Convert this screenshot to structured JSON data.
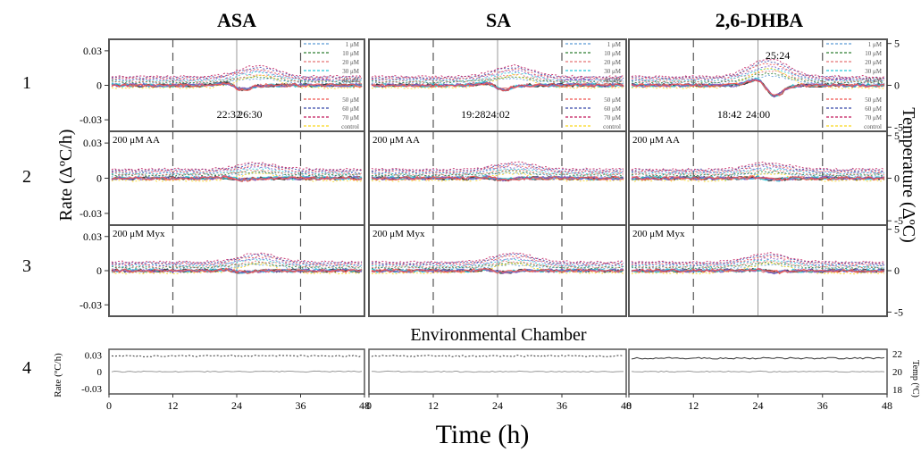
{
  "column_titles": [
    "ASA",
    "SA",
    "2,6-DHBA"
  ],
  "row_labels": [
    "1",
    "2",
    "3",
    "4"
  ],
  "y_left_label": "Rate (ΔºC/h)",
  "y_right_label": "Temperature (ΔºC)",
  "x_label": "Time (h)",
  "env_title": "Environmental Chamber",
  "env_left_label": "Rate (ºC/h)",
  "env_right_label": "Temp (ºC)",
  "row_annotations": [
    "",
    "200 μM AA",
    "200 μM Myx"
  ],
  "time_annotations": [
    {
      "text": "22:32",
      "col": 0,
      "t": 22.53
    },
    {
      "text": "26:30",
      "col": 0,
      "t": 26.5
    },
    {
      "text": "19:28",
      "col": 1,
      "t": 19.47
    },
    {
      "text": "24:02",
      "col": 1,
      "t": 24.03
    },
    {
      "text": "18:42",
      "col": 2,
      "t": 18.7
    },
    {
      "text": "24:00",
      "col": 2,
      "t": 24.0
    },
    {
      "text": "25:24",
      "col": 2,
      "t": 25.4
    }
  ],
  "legend_top": [
    "1 μM",
    "10 μM",
    "20 μM",
    "30 μM",
    "40 μM"
  ],
  "legend_bottom": [
    "50 μM",
    "60 μM",
    "70 μM",
    "control"
  ],
  "colors": {
    "1 μM": "#5b9bd5",
    "10 μM": "#2e7d32",
    "20 μM": "#e57373",
    "30 μM": "#26c6da",
    "40 μM": "#7e57c2",
    "50 μM": "#ef5350",
    "60 μM": "#3949ab",
    "70 μM": "#c2185b",
    "control": "#f9d71c"
  },
  "chart_data": {
    "type": "line",
    "x_ticks": [
      0,
      12,
      24,
      36,
      48
    ],
    "x_range": [
      0,
      48
    ],
    "rate_ticks": [
      -0.03,
      0,
      0.03
    ],
    "rate_tick_labels": [
      "-0.03",
      "0",
      "0.03"
    ],
    "rate_range": [
      -0.04,
      0.04
    ],
    "temp_ticks": [
      -5,
      0,
      5
    ],
    "temp_range": [
      -5.5,
      5.5
    ],
    "env_rate_ticks": [
      -0.03,
      0,
      0.03
    ],
    "env_rate_tick_labels": [
      "-0.03",
      "0",
      "0.03"
    ],
    "env_temp_ticks": [
      18,
      20,
      22
    ],
    "env_temp_range": [
      17.5,
      22.5
    ],
    "dashed_verticals": [
      12,
      36
    ],
    "solid_verticals": [
      24
    ]
  }
}
